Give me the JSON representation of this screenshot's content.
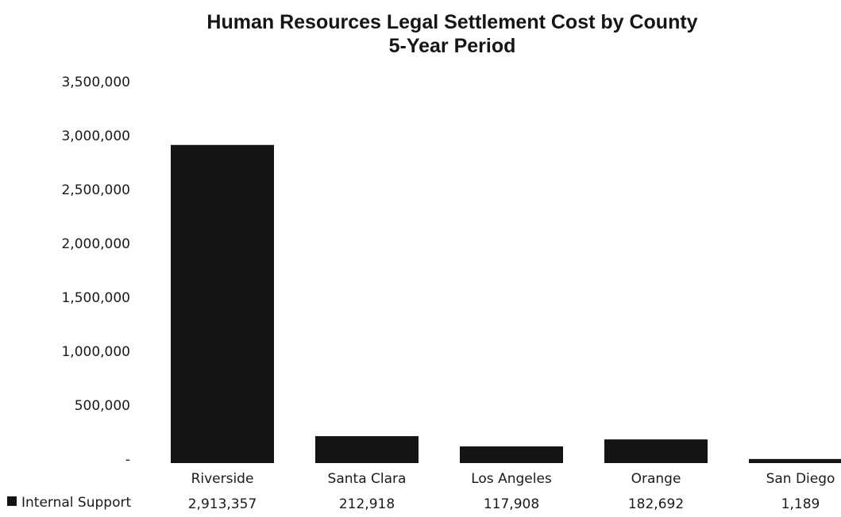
{
  "chart_data": {
    "type": "bar",
    "title": "Human Resources Legal Settlement Cost by County",
    "subtitle": "5-Year Period",
    "categories": [
      "Riverside",
      "Santa Clara",
      "Los Angeles",
      "Orange",
      "San Diego"
    ],
    "series": [
      {
        "name": "Internal Support",
        "values": [
          2913357,
          212918,
          117908,
          182692,
          1189
        ],
        "value_labels": [
          "2,913,357",
          "212,918",
          "117,908",
          "182,692",
          "1,189"
        ],
        "color": "#141414"
      }
    ],
    "y_ticks": [
      0,
      500000,
      1000000,
      1500000,
      2000000,
      2500000,
      3000000,
      3500000
    ],
    "y_tick_labels": [
      "-",
      "500,000",
      "1,000,000",
      "1,500,000",
      "2,000,000",
      "2,500,000",
      "3,000,000",
      "3,500,000"
    ],
    "ylim": [
      0,
      3500000
    ],
    "grid": false,
    "legend_position": "data-table-left",
    "xlabel": "",
    "ylabel": ""
  }
}
